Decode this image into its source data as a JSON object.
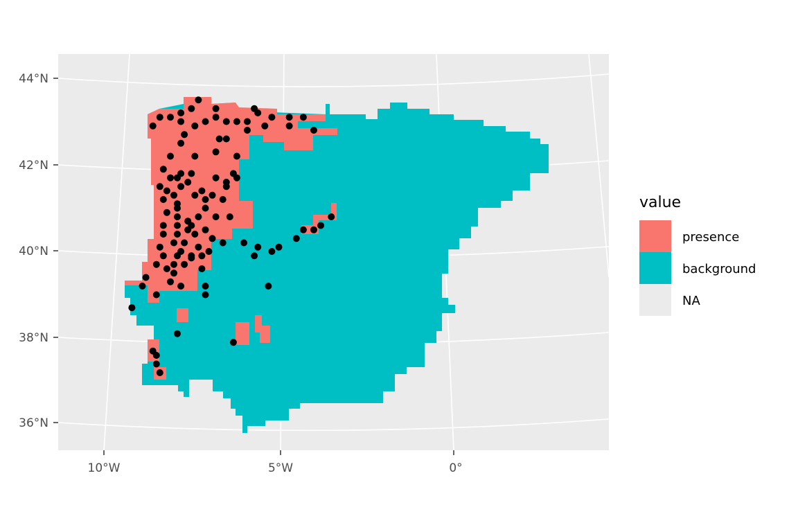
{
  "chart_data": {
    "type": "scatter",
    "title": "",
    "xlabel": "",
    "ylabel": "",
    "x_ticks": [
      "10°W",
      "5°W",
      "0°"
    ],
    "y_ticks": [
      "44°N",
      "42°N",
      "40°N",
      "38°N",
      "36°N"
    ],
    "xlim": [
      -11.3,
      4.4
    ],
    "ylim": [
      35.3,
      44.5
    ],
    "raster_fill": "value",
    "legend": {
      "title": "value",
      "position": "right",
      "entries": [
        {
          "label": "presence",
          "color": "#F8766D"
        },
        {
          "label": "background",
          "color": "#00BFC4"
        },
        {
          "label": "NA",
          "color": "#EBEBEB"
        }
      ]
    },
    "points_color": "#000000",
    "points": [
      [
        -8.6,
        42.9
      ],
      [
        -8.4,
        43.1
      ],
      [
        -8.1,
        43.1
      ],
      [
        -7.8,
        43.2
      ],
      [
        -7.8,
        43.0
      ],
      [
        -7.5,
        43.3
      ],
      [
        -7.3,
        43.5
      ],
      [
        -7.1,
        43.0
      ],
      [
        -7.4,
        42.9
      ],
      [
        -6.8,
        43.3
      ],
      [
        -6.8,
        43.1
      ],
      [
        -6.5,
        43.0
      ],
      [
        -6.2,
        43.0
      ],
      [
        -5.9,
        43.0
      ],
      [
        -5.7,
        43.3
      ],
      [
        -5.6,
        43.2
      ],
      [
        -5.9,
        42.8
      ],
      [
        -6.5,
        42.6
      ],
      [
        -6.7,
        42.6
      ],
      [
        -6.2,
        42.2
      ],
      [
        -6.8,
        42.3
      ],
      [
        -7.4,
        42.2
      ],
      [
        -7.7,
        42.7
      ],
      [
        -7.8,
        42.5
      ],
      [
        -8.1,
        42.2
      ],
      [
        -8.3,
        41.9
      ],
      [
        -8.1,
        41.7
      ],
      [
        -7.9,
        41.7
      ],
      [
        -8.4,
        41.5
      ],
      [
        -8.2,
        41.4
      ],
      [
        -7.8,
        41.5
      ],
      [
        -7.6,
        41.6
      ],
      [
        -7.8,
        41.8
      ],
      [
        -7.5,
        41.8
      ],
      [
        -7.2,
        41.4
      ],
      [
        -7.4,
        41.3
      ],
      [
        -7.1,
        41.2
      ],
      [
        -6.9,
        41.3
      ],
      [
        -6.6,
        41.2
      ],
      [
        -6.5,
        41.5
      ],
      [
        -6.8,
        41.7
      ],
      [
        -6.5,
        41.6
      ],
      [
        -6.3,
        41.8
      ],
      [
        -6.2,
        41.7
      ],
      [
        -6.4,
        40.8
      ],
      [
        -6.8,
        40.8
      ],
      [
        -7.1,
        41.0
      ],
      [
        -7.3,
        40.8
      ],
      [
        -7.6,
        40.7
      ],
      [
        -7.9,
        40.8
      ],
      [
        -8.2,
        40.9
      ],
      [
        -8.3,
        41.2
      ],
      [
        -8.0,
        41.3
      ],
      [
        -7.9,
        41.1
      ],
      [
        -7.9,
        41.0
      ],
      [
        -8.3,
        40.6
      ],
      [
        -8.3,
        40.4
      ],
      [
        -7.9,
        40.6
      ],
      [
        -7.6,
        40.5
      ],
      [
        -7.4,
        40.4
      ],
      [
        -7.5,
        40.6
      ],
      [
        -7.1,
        40.5
      ],
      [
        -6.9,
        40.3
      ],
      [
        -7.3,
        40.1
      ],
      [
        -7.7,
        40.2
      ],
      [
        -7.9,
        40.4
      ],
      [
        -8.4,
        40.1
      ],
      [
        -8.0,
        40.2
      ],
      [
        -7.8,
        40.0
      ],
      [
        -7.5,
        39.9
      ],
      [
        -7.0,
        40.0
      ],
      [
        -7.2,
        39.9
      ],
      [
        -7.5,
        39.85
      ],
      [
        -7.9,
        39.9
      ],
      [
        -8.3,
        39.9
      ],
      [
        -8.0,
        39.7
      ],
      [
        -8.5,
        39.7
      ],
      [
        -8.2,
        39.6
      ],
      [
        -8.0,
        39.5
      ],
      [
        -7.2,
        39.6
      ],
      [
        -7.7,
        39.7
      ],
      [
        -8.1,
        39.3
      ],
      [
        -7.8,
        39.2
      ],
      [
        -7.1,
        39.2
      ],
      [
        -7.1,
        39.0
      ],
      [
        -8.5,
        39.0
      ],
      [
        -8.9,
        39.2
      ],
      [
        -8.8,
        39.4
      ],
      [
        -9.2,
        38.7
      ],
      [
        -7.9,
        38.1
      ],
      [
        -8.6,
        37.7
      ],
      [
        -8.5,
        37.6
      ],
      [
        -8.5,
        37.4
      ],
      [
        -8.4,
        37.2
      ],
      [
        -6.3,
        37.9
      ],
      [
        -6.6,
        40.2
      ],
      [
        -6.0,
        40.2
      ],
      [
        -5.6,
        40.1
      ],
      [
        -5.7,
        39.9
      ],
      [
        -5.2,
        40.0
      ],
      [
        -5.0,
        40.1
      ],
      [
        -5.3,
        39.2
      ],
      [
        -4.5,
        40.3
      ],
      [
        -4.3,
        40.5
      ],
      [
        -4.0,
        40.5
      ],
      [
        -3.8,
        40.6
      ],
      [
        -3.5,
        40.8
      ],
      [
        -4.7,
        42.9
      ],
      [
        -4.0,
        42.8
      ],
      [
        -4.7,
        43.1
      ],
      [
        -4.3,
        43.1
      ],
      [
        -5.4,
        42.9
      ],
      [
        -5.2,
        43.1
      ]
    ]
  }
}
